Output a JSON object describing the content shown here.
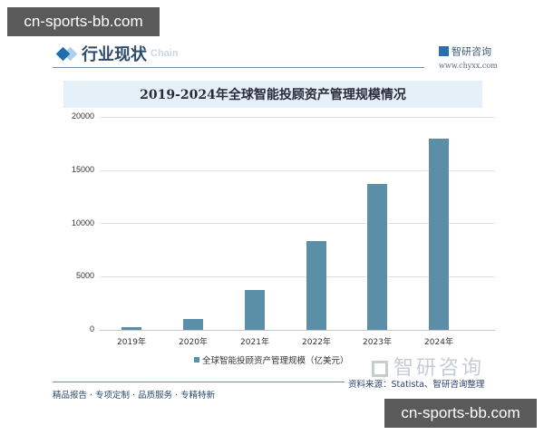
{
  "watermarks": {
    "top": "cn-sports-bb.com",
    "bottom": "cn-sports-bb.com"
  },
  "header": {
    "section_title": "行业现状",
    "section_subtitle": "Chain",
    "brand_name": "智研咨询",
    "brand_url": "www.chyxx.com"
  },
  "chart_data": {
    "type": "bar",
    "title": "2019-2024年全球智能投顾资产管理规模情况",
    "categories": [
      "2019年",
      "2020年",
      "2021年",
      "2022年",
      "2023年",
      "2024年"
    ],
    "series": [
      {
        "name": "全球智能投顾资产管理规模（亿美元）",
        "color": "#5b8fa8",
        "values": [
          250,
          1000,
          3750,
          8350,
          13700,
          18000
        ]
      }
    ],
    "values": [
      250,
      1000,
      3750,
      8350,
      13700,
      18000
    ],
    "xlabel": "",
    "ylabel": "",
    "ylim": [
      0,
      20000
    ],
    "yticks": [
      "0",
      "5000",
      "10000",
      "15000",
      "20000"
    ],
    "grid": true,
    "legend_position": "bottom"
  },
  "legend": {
    "label": "全球智能投顾资产管理规模（亿美元）"
  },
  "footer": {
    "watermark_logo": "智研咨询",
    "source": "资料来源：Statista、智研咨询整理",
    "slogan": "精品报告 · 专项定制 · 品质服务 · 专精特新"
  }
}
